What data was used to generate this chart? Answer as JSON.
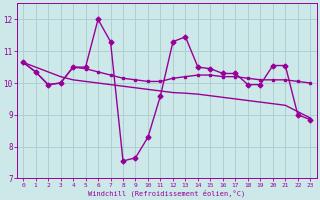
{
  "x": [
    0,
    1,
    2,
    3,
    4,
    5,
    6,
    7,
    8,
    9,
    10,
    11,
    12,
    13,
    14,
    15,
    16,
    17,
    18,
    19,
    20,
    21,
    22,
    23
  ],
  "y_main": [
    10.65,
    10.35,
    9.95,
    10.0,
    10.5,
    10.5,
    12.0,
    11.3,
    7.55,
    7.65,
    8.3,
    9.6,
    11.3,
    11.45,
    10.5,
    10.45,
    10.3,
    10.3,
    9.95,
    9.95,
    10.55,
    10.55,
    9.0,
    8.85
  ],
  "y_smooth": [
    10.65,
    10.35,
    9.95,
    10.0,
    10.5,
    10.45,
    10.35,
    10.25,
    10.15,
    10.1,
    10.05,
    10.05,
    10.15,
    10.2,
    10.25,
    10.25,
    10.2,
    10.2,
    10.15,
    10.1,
    10.1,
    10.1,
    10.05,
    10.0
  ],
  "y_trend": [
    10.65,
    10.5,
    10.35,
    10.2,
    10.1,
    10.05,
    10.0,
    9.95,
    9.9,
    9.85,
    9.8,
    9.75,
    9.7,
    9.68,
    9.65,
    9.6,
    9.55,
    9.5,
    9.45,
    9.4,
    9.35,
    9.3,
    9.1,
    8.9
  ],
  "line_color": "#990099",
  "bg_color": "#cce8e8",
  "grid_color": "#aacccc",
  "ylim": [
    7,
    12.5
  ],
  "yticks": [
    7,
    8,
    9,
    10,
    11,
    12
  ],
  "xlim": [
    -0.5,
    23.5
  ],
  "xticks": [
    0,
    1,
    2,
    3,
    4,
    5,
    6,
    7,
    8,
    9,
    10,
    11,
    12,
    13,
    14,
    15,
    16,
    17,
    18,
    19,
    20,
    21,
    22,
    23
  ],
  "xlabel": "Windchill (Refroidissement éolien,°C)",
  "markersize": 2.5,
  "linewidth": 1.0
}
